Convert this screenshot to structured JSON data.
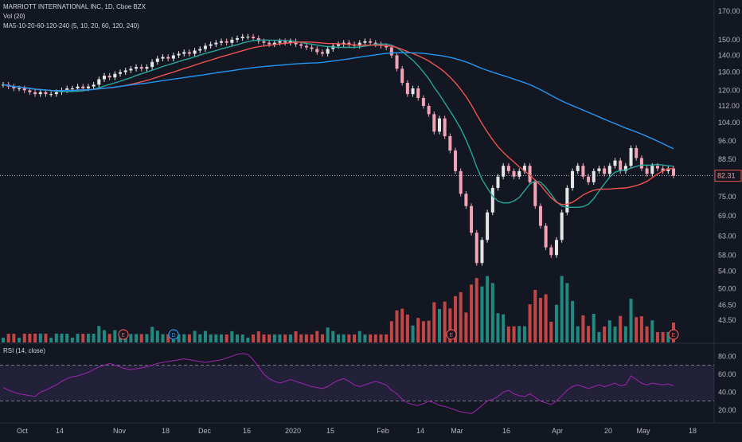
{
  "legend": {
    "title": "MARRIOTT INTERNATIONAL INC, 1D, Cboe BZX",
    "vol": "Vol (20)",
    "ma": "MA5-10-20-60-120-240 (5, 10, 20, 60, 120, 240)",
    "rsi": "RSI (14, close)"
  },
  "colors": {
    "background": "#131722",
    "up": "#e6e6e6",
    "down": "#f2a3b5",
    "vol_up": "#26a69a",
    "vol_down": "#ef5350",
    "ma_fast": "#26a69a",
    "ma_mid": "#ef5350",
    "ma_slow": "#2196f3",
    "rsi_line": "#9c27b0",
    "rsi_band": "#7e57c2"
  },
  "chart_data": [
    {
      "type": "candlestick",
      "title": "MARRIOTT INTERNATIONAL INC, 1D, Cboe BZX",
      "price_scale": "log",
      "ylim": [
        40,
        175
      ],
      "price_ticks": [
        "170.00",
        "150.00",
        "140.00",
        "130.00",
        "120.00",
        "112.00",
        "104.00",
        "96.00",
        "88.50",
        "82.31",
        "75.00",
        "69.00",
        "63.00",
        "58.00",
        "54.00",
        "50.00",
        "46.50",
        "43.50"
      ],
      "last_price": 82.31,
      "x_ticks": [
        "Oct",
        "14",
        "Nov",
        "18",
        "Dec",
        "16",
        "2020",
        "15",
        "Feb",
        "14",
        "Mar",
        "16",
        "Apr",
        "20",
        "May",
        "18"
      ],
      "close": [
        123,
        122,
        121,
        121,
        120,
        119,
        118,
        119,
        118,
        118,
        119,
        120,
        121,
        121,
        122,
        121,
        122,
        123,
        126,
        128,
        127,
        129,
        130,
        131,
        132,
        133,
        132,
        133,
        136,
        138,
        139,
        138,
        140,
        141,
        142,
        141,
        143,
        144,
        146,
        147,
        148,
        149,
        148,
        150,
        151,
        152,
        152,
        151,
        149,
        148,
        147,
        148,
        149,
        148,
        149,
        147,
        146,
        145,
        144,
        142,
        141,
        144,
        146,
        147,
        148,
        147,
        146,
        148,
        149,
        148,
        147,
        146,
        145,
        140,
        132,
        124,
        118,
        121,
        116,
        112,
        108,
        100,
        106,
        98,
        92,
        84,
        76,
        72,
        64,
        56,
        62,
        70,
        78,
        82,
        86,
        84,
        82,
        84,
        86,
        80,
        72,
        66,
        60,
        58,
        62,
        70,
        78,
        84,
        86,
        82,
        80,
        84,
        85,
        83,
        86,
        88,
        84,
        86,
        93,
        89,
        85,
        83,
        86,
        85,
        84,
        85,
        82.31
      ],
      "events": [
        "E",
        "D",
        "E",
        "E"
      ],
      "moving_averages": [
        "MA10",
        "MA20",
        "MA60"
      ]
    },
    {
      "type": "bar",
      "title": "Vol (20)"
    },
    {
      "type": "line",
      "title": "RSI (14, close)",
      "ylim": [
        10,
        90
      ],
      "y_ticks": [
        "80.00",
        "60.00",
        "40.00",
        "20.00"
      ],
      "bands": [
        30,
        70
      ],
      "values": [
        45,
        42,
        40,
        38,
        37,
        36,
        35,
        40,
        42,
        45,
        48,
        52,
        55,
        57,
        58,
        60,
        62,
        65,
        68,
        70,
        72,
        70,
        68,
        66,
        65,
        66,
        67,
        68,
        70,
        72,
        73,
        74,
        75,
        76,
        77,
        76,
        75,
        74,
        73,
        74,
        75,
        76,
        78,
        80,
        82,
        83,
        82,
        76,
        68,
        60,
        55,
        52,
        50,
        52,
        54,
        52,
        50,
        48,
        46,
        45,
        44,
        46,
        50,
        53,
        55,
        52,
        48,
        46,
        48,
        50,
        52,
        50,
        48,
        42,
        38,
        32,
        28,
        26,
        25,
        27,
        30,
        28,
        25,
        24,
        22,
        20,
        18,
        17,
        16,
        20,
        25,
        30,
        32,
        35,
        40,
        42,
        38,
        36,
        35,
        38,
        34,
        30,
        28,
        26,
        30,
        36,
        42,
        46,
        48,
        46,
        44,
        46,
        48,
        46,
        48,
        50,
        47,
        48,
        58,
        54,
        50,
        48,
        50,
        49,
        48,
        49,
        47
      ]
    }
  ]
}
